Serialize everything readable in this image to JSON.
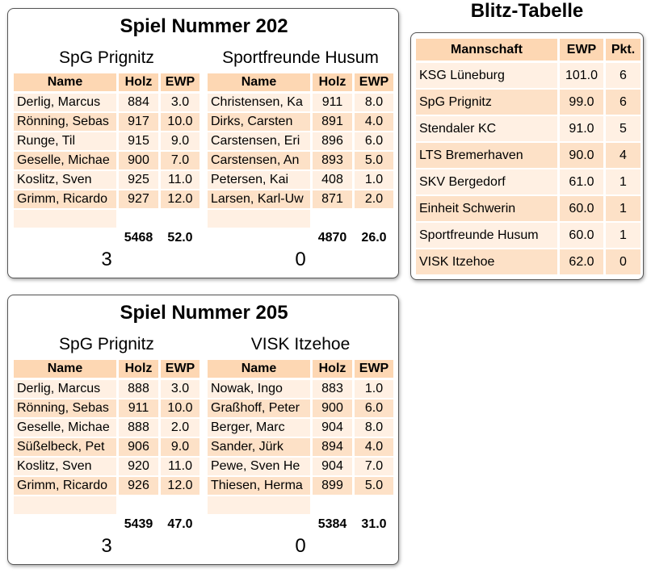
{
  "matches": [
    {
      "title": "Spiel Nummer 202",
      "teams": [
        {
          "name": "SpG Prignitz",
          "header": [
            "Name",
            "Holz",
            "EWP"
          ],
          "rows": [
            [
              "Derlig, Marcus",
              "884",
              "3.0"
            ],
            [
              "Rönning, Sebas",
              "917",
              "10.0"
            ],
            [
              "Runge, Til",
              "915",
              "9.0"
            ],
            [
              "Geselle, Michae",
              "900",
              "7.0"
            ],
            [
              "Koslitz, Sven",
              "925",
              "11.0"
            ],
            [
              "Grimm, Ricardo",
              "927",
              "12.0"
            ]
          ],
          "total_holz": "5468",
          "total_ewp": "52.0",
          "score": "3"
        },
        {
          "name": "Sportfreunde Husum",
          "header": [
            "Name",
            "Holz",
            "EWP"
          ],
          "rows": [
            [
              "Christensen, Ka",
              "911",
              "8.0"
            ],
            [
              "Dirks, Carsten",
              "891",
              "4.0"
            ],
            [
              "Carstensen, Eri",
              "896",
              "6.0"
            ],
            [
              "Carstensen, An",
              "893",
              "5.0"
            ],
            [
              "Petersen, Kai",
              "408",
              "1.0"
            ],
            [
              "Larsen, Karl-Uw",
              "871",
              "2.0"
            ]
          ],
          "total_holz": "4870",
          "total_ewp": "26.0",
          "score": "0"
        }
      ]
    },
    {
      "title": "Spiel Nummer 205",
      "teams": [
        {
          "name": "SpG Prignitz",
          "header": [
            "Name",
            "Holz",
            "EWP"
          ],
          "rows": [
            [
              "Derlig, Marcus",
              "888",
              "3.0"
            ],
            [
              "Rönning, Sebas",
              "911",
              "10.0"
            ],
            [
              "Geselle, Michae",
              "888",
              "2.0"
            ],
            [
              "Süßelbeck, Pet",
              "906",
              "9.0"
            ],
            [
              "Koslitz, Sven",
              "920",
              "11.0"
            ],
            [
              "Grimm, Ricardo",
              "926",
              "12.0"
            ]
          ],
          "total_holz": "5439",
          "total_ewp": "47.0",
          "score": "3"
        },
        {
          "name": "VISK Itzehoe",
          "header": [
            "Name",
            "Holz",
            "EWP"
          ],
          "rows": [
            [
              "Nowak, Ingo",
              "883",
              "1.0"
            ],
            [
              "Graßhoff, Peter",
              "900",
              "6.0"
            ],
            [
              "Berger, Marc",
              "904",
              "8.0"
            ],
            [
              "Sander, Jürk",
              "894",
              "4.0"
            ],
            [
              "Pewe, Sven He",
              "904",
              "7.0"
            ],
            [
              "Thiesen, Herma",
              "899",
              "5.0"
            ]
          ],
          "total_holz": "5384",
          "total_ewp": "31.0",
          "score": "0"
        }
      ]
    }
  ],
  "standings": {
    "title": "Blitz-Tabelle",
    "header": [
      "Mannschaft",
      "EWP",
      "Pkt."
    ],
    "rows": [
      [
        "KSG Lüneburg",
        "101.0",
        "6"
      ],
      [
        "SpG Prignitz",
        "99.0",
        "6"
      ],
      [
        "Stendaler KC",
        "91.0",
        "5"
      ],
      [
        "LTS Bremerhaven",
        "90.0",
        "4"
      ],
      [
        "SKV Bergedorf",
        "61.0",
        "1"
      ],
      [
        "Einheit Schwerin",
        "60.0",
        "1"
      ],
      [
        "Sportfreunde Husum",
        "60.0",
        "1"
      ],
      [
        "VISK Itzehoe",
        "62.0",
        "0"
      ]
    ]
  }
}
